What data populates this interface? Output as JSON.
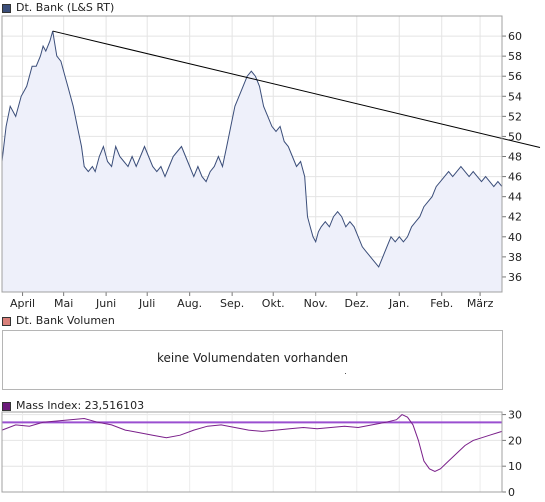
{
  "main_panel": {
    "legend_label": "Dt. Bank (L&S RT)",
    "legend_color": "#3b4e7a"
  },
  "volume_panel": {
    "legend_label": "Dt. Bank Volumen",
    "legend_color": "#d9807a",
    "message": "keine Volumendaten vorhanden"
  },
  "mass_panel": {
    "legend_label": "Mass Index: 23,516103",
    "legend_color": "#6b1a7a"
  },
  "chart_data": [
    {
      "type": "line",
      "x_axis_ticks": [
        "April",
        "Mai",
        "Juni",
        "Juli",
        "Aug.",
        "Sep.",
        "Okt.",
        "Nov.",
        "Dez.",
        "Jan.",
        "Feb.",
        "März"
      ],
      "y_axis_ticks": [
        36,
        38,
        40,
        42,
        44,
        46,
        48,
        50,
        52,
        54,
        56,
        58,
        60
      ],
      "ylim": [
        34.5,
        62
      ],
      "grid": true,
      "fill": true,
      "series": [
        {
          "line_color": "#3b4e7a",
          "fill_color": "#eef0fa",
          "points": [
            [
              0,
              47.5
            ],
            [
              3,
              51
            ],
            [
              6,
              53
            ],
            [
              10,
              52
            ],
            [
              14,
              54
            ],
            [
              18,
              55
            ],
            [
              22,
              57
            ],
            [
              25,
              57
            ],
            [
              28,
              58
            ],
            [
              30,
              59
            ],
            [
              32,
              58.5
            ],
            [
              35,
              59.5
            ],
            [
              37,
              60.5
            ],
            [
              40,
              58
            ],
            [
              43,
              57.5
            ],
            [
              46,
              56
            ],
            [
              48,
              55
            ],
            [
              50,
              54
            ],
            [
              52,
              53
            ],
            [
              55,
              51
            ],
            [
              58,
              49
            ],
            [
              60,
              47
            ],
            [
              63,
              46.5
            ],
            [
              66,
              47
            ],
            [
              68,
              46.5
            ],
            [
              71,
              48
            ],
            [
              74,
              49
            ],
            [
              77,
              47.5
            ],
            [
              80,
              47
            ],
            [
              83,
              49
            ],
            [
              86,
              48
            ],
            [
              89,
              47.5
            ],
            [
              92,
              47
            ],
            [
              95,
              48
            ],
            [
              98,
              47
            ],
            [
              101,
              48
            ],
            [
              104,
              49
            ],
            [
              107,
              48
            ],
            [
              110,
              47
            ],
            [
              113,
              46.5
            ],
            [
              116,
              47
            ],
            [
              119,
              46
            ],
            [
              122,
              47
            ],
            [
              125,
              48
            ],
            [
              128,
              48.5
            ],
            [
              131,
              49
            ],
            [
              134,
              48
            ],
            [
              137,
              47
            ],
            [
              140,
              46
            ],
            [
              143,
              47
            ],
            [
              146,
              46
            ],
            [
              149,
              45.5
            ],
            [
              152,
              46.5
            ],
            [
              155,
              47
            ],
            [
              158,
              48
            ],
            [
              161,
              47
            ],
            [
              164,
              49
            ],
            [
              167,
              51
            ],
            [
              170,
              53
            ],
            [
              173,
              54
            ],
            [
              176,
              55
            ],
            [
              179,
              56
            ],
            [
              182,
              56.5
            ],
            [
              185,
              56
            ],
            [
              188,
              55
            ],
            [
              191,
              53
            ],
            [
              194,
              52
            ],
            [
              197,
              51
            ],
            [
              200,
              50.5
            ],
            [
              203,
              51
            ],
            [
              206,
              49.5
            ],
            [
              209,
              49
            ],
            [
              212,
              48
            ],
            [
              215,
              47
            ],
            [
              218,
              47.5
            ],
            [
              221,
              46
            ],
            [
              222,
              44
            ],
            [
              223,
              42
            ],
            [
              225,
              41
            ],
            [
              227,
              40
            ],
            [
              229,
              39.5
            ],
            [
              231,
              40.5
            ],
            [
              233,
              41
            ],
            [
              236,
              41.5
            ],
            [
              239,
              41
            ],
            [
              242,
              42
            ],
            [
              245,
              42.5
            ],
            [
              248,
              42
            ],
            [
              251,
              41
            ],
            [
              254,
              41.5
            ],
            [
              257,
              41
            ],
            [
              260,
              40
            ],
            [
              263,
              39
            ],
            [
              266,
              38.5
            ],
            [
              269,
              38
            ],
            [
              272,
              37.5
            ],
            [
              275,
              37
            ],
            [
              278,
              38
            ],
            [
              281,
              39
            ],
            [
              284,
              40
            ],
            [
              287,
              39.5
            ],
            [
              290,
              40
            ],
            [
              293,
              39.5
            ],
            [
              296,
              40
            ],
            [
              299,
              41
            ],
            [
              302,
              41.5
            ],
            [
              305,
              42
            ],
            [
              308,
              43
            ],
            [
              311,
              43.5
            ],
            [
              314,
              44
            ],
            [
              317,
              45
            ],
            [
              320,
              45.5
            ],
            [
              323,
              46
            ],
            [
              326,
              46.5
            ],
            [
              329,
              46
            ],
            [
              332,
              46.5
            ],
            [
              335,
              47
            ],
            [
              338,
              46.5
            ],
            [
              341,
              46
            ],
            [
              344,
              46.5
            ],
            [
              347,
              46
            ],
            [
              350,
              45.5
            ],
            [
              353,
              46
            ],
            [
              356,
              45.5
            ],
            [
              359,
              45
            ],
            [
              362,
              45.5
            ],
            [
              365,
              45
            ]
          ]
        }
      ],
      "trendline": {
        "from": [
          37,
          60.5
        ],
        "to": [
          365,
          49.8
        ],
        "color": "#000000"
      }
    },
    {
      "type": "line",
      "y_axis_ticks": [
        0,
        10,
        20,
        30
      ],
      "ylim": [
        0,
        31
      ],
      "reference_line": {
        "value": 27,
        "color": "#9a4fd0"
      },
      "series": [
        {
          "line_color": "#7a1f8a",
          "points": [
            [
              0,
              24
            ],
            [
              10,
              26
            ],
            [
              20,
              25.5
            ],
            [
              30,
              27
            ],
            [
              40,
              27.5
            ],
            [
              50,
              28
            ],
            [
              60,
              28.5
            ],
            [
              70,
              27
            ],
            [
              80,
              26
            ],
            [
              90,
              24
            ],
            [
              100,
              23
            ],
            [
              110,
              22
            ],
            [
              120,
              21
            ],
            [
              130,
              22
            ],
            [
              140,
              24
            ],
            [
              150,
              25.5
            ],
            [
              160,
              26
            ],
            [
              170,
              25
            ],
            [
              180,
              24
            ],
            [
              190,
              23.5
            ],
            [
              200,
              24
            ],
            [
              210,
              24.5
            ],
            [
              220,
              25
            ],
            [
              230,
              24.5
            ],
            [
              240,
              25
            ],
            [
              250,
              25.5
            ],
            [
              260,
              25
            ],
            [
              270,
              26
            ],
            [
              280,
              27
            ],
            [
              288,
              28
            ],
            [
              292,
              30
            ],
            [
              296,
              29
            ],
            [
              300,
              26
            ],
            [
              304,
              20
            ],
            [
              308,
              12
            ],
            [
              312,
              9
            ],
            [
              316,
              8
            ],
            [
              320,
              9
            ],
            [
              326,
              12
            ],
            [
              332,
              15
            ],
            [
              338,
              18
            ],
            [
              344,
              20
            ],
            [
              350,
              21
            ],
            [
              356,
              22
            ],
            [
              362,
              23
            ],
            [
              365,
              23.5
            ]
          ]
        }
      ]
    }
  ]
}
